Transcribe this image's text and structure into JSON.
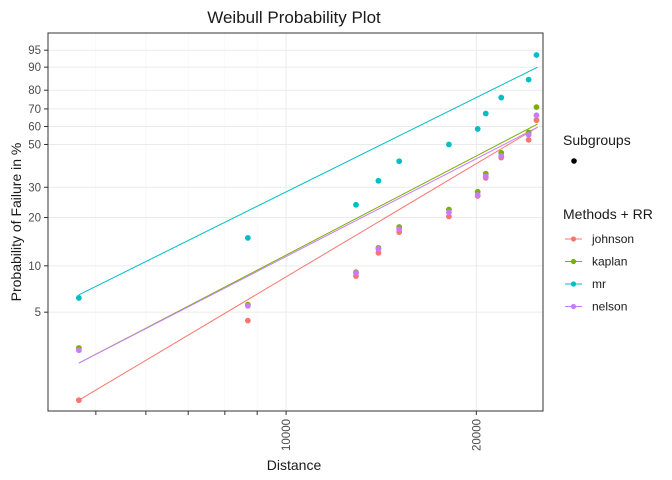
{
  "chart_data": {
    "type": "scatter",
    "title": "Weibull Probability Plot",
    "xlabel": "Distance",
    "ylabel": "Probability of Failure in %",
    "x_scale": "log",
    "y_scale": "weibull",
    "xlim": [
      4200,
      25500
    ],
    "ylim": [
      1.1,
      98
    ],
    "x_ticks": [
      10000,
      20000
    ],
    "x_tick_labels": [
      "10000",
      "20000"
    ],
    "x_minor_ticks": [
      5000,
      6000,
      7000,
      8000,
      9000
    ],
    "y_ticks": [
      5,
      10,
      20,
      30,
      50,
      60,
      70,
      80,
      90,
      95
    ],
    "y_tick_labels": [
      "5",
      "10",
      "20",
      "30",
      "50",
      "60",
      "70",
      "80",
      "90",
      "95"
    ],
    "grid": true,
    "legend": {
      "position": "right",
      "subgroups_title": "Subgroups",
      "methods_title": "Methods + RR"
    },
    "series": [
      {
        "name": "johnson",
        "color": "#F8766D",
        "points": [
          [
            4700,
            1.3
          ],
          [
            8700,
            4.4
          ],
          [
            12900,
            8.6
          ],
          [
            14000,
            12.1
          ],
          [
            15100,
            16.3
          ],
          [
            18100,
            20.3
          ],
          [
            20100,
            26.8
          ],
          [
            20700,
            33.8
          ],
          [
            21900,
            43.2
          ],
          [
            24200,
            52.5
          ],
          [
            24900,
            63.6
          ]
        ],
        "fit": [
          [
            4700,
            1.3
          ],
          [
            25000,
            59.6
          ]
        ]
      },
      {
        "name": "kaplan",
        "color": "#7CAE00",
        "points": [
          [
            4700,
            2.9
          ],
          [
            8700,
            5.6
          ],
          [
            12900,
            9.1
          ],
          [
            14000,
            13.0
          ],
          [
            15100,
            17.5
          ],
          [
            18100,
            22.3
          ],
          [
            20100,
            28.3
          ],
          [
            20700,
            35.6
          ],
          [
            21900,
            45.6
          ],
          [
            24200,
            56.6
          ],
          [
            24900,
            71.0
          ]
        ],
        "fit": [
          [
            4700,
            2.3
          ],
          [
            25000,
            61.4
          ]
        ]
      },
      {
        "name": "mr",
        "color": "#00BFC4",
        "points": [
          [
            4700,
            6.2
          ],
          [
            8700,
            15.0
          ],
          [
            12900,
            23.8
          ],
          [
            14000,
            32.6
          ],
          [
            15100,
            41.4
          ],
          [
            18100,
            50.0
          ],
          [
            20100,
            58.6
          ],
          [
            20700,
            67.4
          ],
          [
            21900,
            76.2
          ],
          [
            24200,
            85.0
          ],
          [
            24900,
            93.8
          ]
        ],
        "fit": [
          [
            4700,
            6.5
          ],
          [
            25000,
            90.0
          ]
        ]
      },
      {
        "name": "nelson",
        "color": "#C77CFF",
        "points": [
          [
            4700,
            2.8
          ],
          [
            8700,
            5.5
          ],
          [
            12900,
            9.0
          ],
          [
            14000,
            12.8
          ],
          [
            15100,
            17.0
          ],
          [
            18100,
            21.5
          ],
          [
            20100,
            27.1
          ],
          [
            20700,
            34.5
          ],
          [
            21900,
            44.1
          ],
          [
            24200,
            55.3
          ],
          [
            24900,
            66.4
          ]
        ],
        "fit": [
          [
            4700,
            2.3
          ],
          [
            25000,
            59.6
          ]
        ]
      }
    ]
  }
}
